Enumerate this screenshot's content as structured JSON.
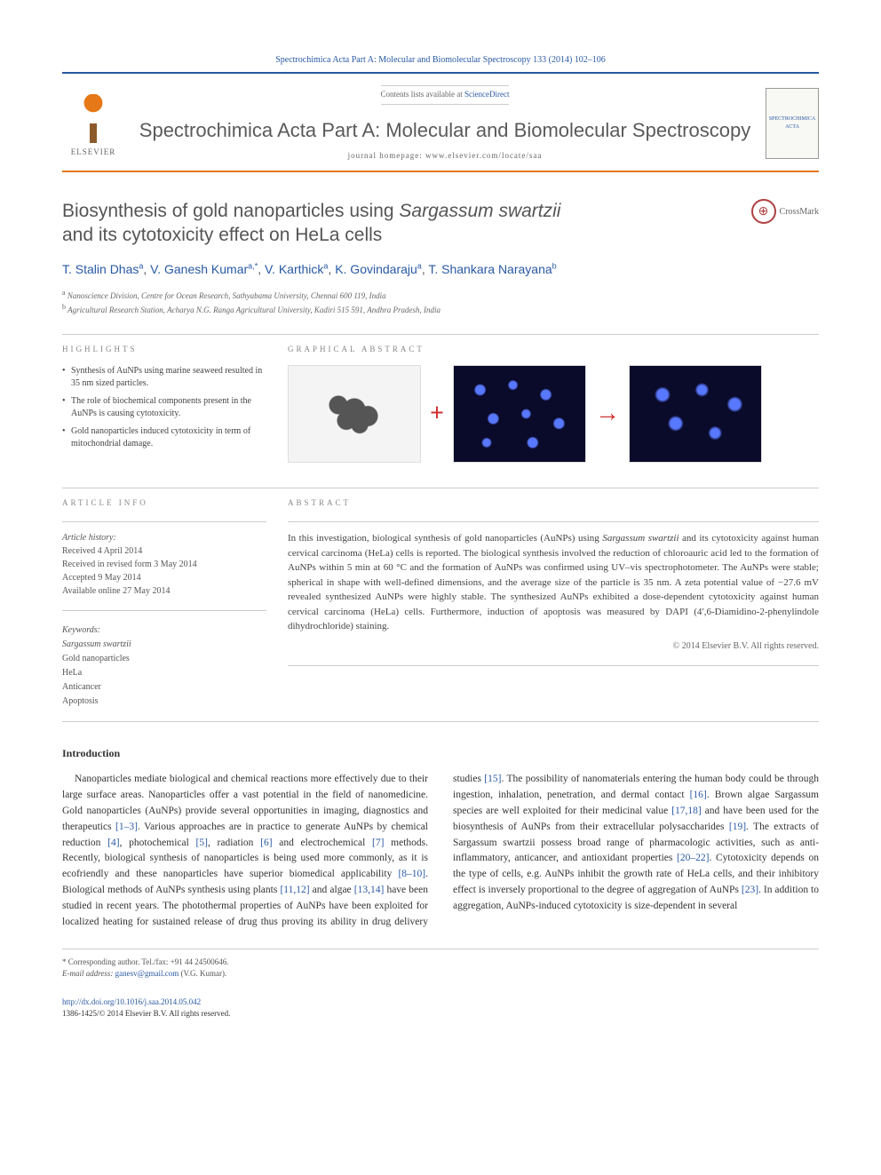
{
  "header": {
    "citation": "Spectrochimica Acta Part A: Molecular and Biomolecular Spectroscopy 133 (2014) 102–106",
    "contents_prefix": "Contents lists available at ",
    "sciencedirect": "ScienceDirect",
    "journal_name": "Spectrochimica Acta Part A: Molecular and Biomolecular Spectroscopy",
    "homepage": "journal homepage: www.elsevier.com/locate/saa",
    "elsevier": "ELSEVIER",
    "cover_text": "SPECTROCHIMICA ACTA"
  },
  "title": {
    "line1_prefix": "Biosynthesis of gold nanoparticles using ",
    "line1_italic": "Sargassum swartzii",
    "line2": "and its cytotoxicity effect on HeLa cells"
  },
  "crossmark": "CrossMark",
  "authors": {
    "a1": "T. Stalin Dhas",
    "a1_sup": "a",
    "a2": "V. Ganesh Kumar",
    "a2_sup": "a,",
    "a2_star": "*",
    "a3": "V. Karthick",
    "a3_sup": "a",
    "a4": "K. Govindaraju",
    "a4_sup": "a",
    "a5": "T. Shankara Narayana",
    "a5_sup": "b"
  },
  "affiliations": {
    "a": "Nanoscience Division, Centre for Ocean Research, Sathyabama University, Chennai 600 119, India",
    "b": "Agricultural Research Station, Acharya N.G. Ranga Agricultural University, Kadiri 515 591, Andhra Pradesh, India"
  },
  "highlights_label": "HIGHLIGHTS",
  "highlights": [
    "Synthesis of AuNPs using marine seaweed resulted in 35 nm sized particles.",
    "The role of biochemical components present in the AuNPs is causing cytotoxicity.",
    "Gold nanoparticles induced cytotoxicity in term of mitochondrial damage."
  ],
  "graphical_label": "GRAPHICAL ABSTRACT",
  "article_info_label": "ARTICLE INFO",
  "article_info": {
    "history_label": "Article history:",
    "received": "Received 4 April 2014",
    "revised": "Received in revised form 3 May 2014",
    "accepted": "Accepted 9 May 2014",
    "online": "Available online 27 May 2014"
  },
  "keywords_label": "Keywords:",
  "keywords": [
    "Sargassum swartzii",
    "Gold nanoparticles",
    "HeLa",
    "Anticancer",
    "Apoptosis"
  ],
  "abstract_label": "ABSTRACT",
  "abstract": "In this investigation, biological synthesis of gold nanoparticles (AuNPs) using Sargassum swartzii and its cytotoxicity against human cervical carcinoma (HeLa) cells is reported. The biological synthesis involved the reduction of chloroauric acid led to the formation of AuNPs within 5 min at 60 °C and the formation of AuNPs was confirmed using UV–vis spectrophotometer. The AuNPs were stable; spherical in shape with well-defined dimensions, and the average size of the particle is 35 nm. A zeta potential value of −27.6 mV revealed synthesized AuNPs were highly stable. The synthesized AuNPs exhibited a dose-dependent cytotoxicity against human cervical carcinoma (HeLa) cells. Furthermore, induction of apoptosis was measured by DAPI (4′,6-Diamidino-2-phenylindole dihydrochloride) staining.",
  "abstract_copyright": "© 2014 Elsevier B.V. All rights reserved.",
  "intro_heading": "Introduction",
  "body_p1": "Nanoparticles mediate biological and chemical reactions more effectively due to their large surface areas. Nanoparticles offer a vast potential in the field of nanomedicine. Gold nanoparticles (AuNPs) provide several opportunities in imaging, diagnostics and therapeutics [1–3]. Various approaches are in practice to generate AuNPs by chemical reduction [4], photochemical [5], radiation [6] and electrochemical [7] methods. Recently, biological synthesis of nanoparticles is being used more commonly, as it is ecofriendly and these nanoparticles have superior biomedical applicability [8–10]. Biological methods of AuNPs synthesis using ",
  "body_p2": "plants [11,12] and algae [13,14] have been studied in recent years. The photothermal properties of AuNPs have been exploited for localized heating for sustained release of drug thus proving its ability in drug delivery studies [15]. The possibility of nanomaterials entering the human body could be through ingestion, inhalation, penetration, and dermal contact [16]. Brown algae Sargassum species are well exploited for their medicinal value [17,18] and have been used for the biosynthesis of AuNPs from their extracellular polysaccharides [19]. The extracts of Sargassum swartzii possess broad range of pharmacologic activities, such as anti-inflammatory, anticancer, and antioxidant properties [20–22]. Cytotoxicity depends on the type of cells, e.g. AuNPs inhibit the growth rate of HeLa cells, and their inhibitory effect is inversely proportional to the degree of aggregation of AuNPs [23]. In addition to aggregation, AuNPs-induced cytotoxicity is size-dependent in several",
  "footer": {
    "corr_label": "* Corresponding author. Tel./fax: +91 44 24500646.",
    "email_label": "E-mail address:",
    "email": "ganesv@gmail.com",
    "email_suffix": "(V.G. Kumar).",
    "doi": "http://dx.doi.org/10.1016/j.saa.2014.05.042",
    "issn": "1386-1425/© 2014 Elsevier B.V. All rights reserved."
  },
  "colors": {
    "link": "#2959a4",
    "orange": "#e67817"
  }
}
